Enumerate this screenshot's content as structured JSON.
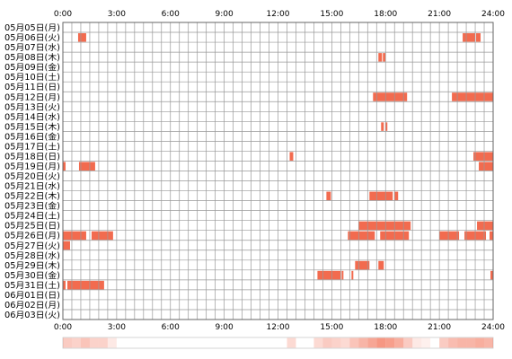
{
  "chart_data": {
    "type": "activity-grid",
    "title": "",
    "xlabel": "",
    "ylabel": "",
    "x_unit": "hour",
    "xlim": [
      0,
      24
    ],
    "x_ticks": [
      "0:00",
      "3:00",
      "6:00",
      "9:00",
      "12:00",
      "15:00",
      "18:00",
      "21:00",
      "24:00"
    ],
    "grid": true,
    "colors": {
      "bar": "#f26b4f",
      "bar_light": "#f7b2a3",
      "grid": "#999999",
      "border": "#666666"
    },
    "days": [
      {
        "label": "05月05日(月)",
        "spans": []
      },
      {
        "label": "05月06日(火)",
        "spans": [
          [
            0.85,
            1.3
          ],
          [
            22.3,
            23.0
          ],
          [
            23.05,
            23.3
          ]
        ]
      },
      {
        "label": "05月07日(水)",
        "spans": []
      },
      {
        "label": "05月08日(木)",
        "spans": [
          [
            17.6,
            17.8
          ],
          [
            17.85,
            18.0
          ]
        ]
      },
      {
        "label": "05月09日(金)",
        "spans": []
      },
      {
        "label": "05月10日(土)",
        "spans": []
      },
      {
        "label": "05月11日(日)",
        "spans": []
      },
      {
        "label": "05月12日(月)",
        "spans": [
          [
            17.3,
            19.2
          ],
          [
            21.7,
            24.0
          ]
        ]
      },
      {
        "label": "05月13日(火)",
        "spans": []
      },
      {
        "label": "05月14日(水)",
        "spans": []
      },
      {
        "label": "05月15日(木)",
        "spans": [
          [
            17.75,
            17.9
          ],
          [
            18.0,
            18.1
          ]
        ]
      },
      {
        "label": "05月16日(金)",
        "spans": []
      },
      {
        "label": "05月17日(土)",
        "spans": []
      },
      {
        "label": "05月18日(日)",
        "spans": [
          [
            12.65,
            12.85
          ],
          [
            22.9,
            24.0
          ]
        ]
      },
      {
        "label": "05月19日(月)",
        "spans": [
          [
            0.0,
            0.15
          ],
          [
            0.9,
            1.8
          ],
          [
            23.2,
            24.0
          ]
        ]
      },
      {
        "label": "05月20日(火)",
        "spans": []
      },
      {
        "label": "05月21日(水)",
        "spans": []
      },
      {
        "label": "05月22日(木)",
        "spans": [
          [
            14.7,
            14.95
          ],
          [
            17.1,
            18.4
          ],
          [
            18.5,
            18.7
          ]
        ]
      },
      {
        "label": "05月23日(金)",
        "spans": []
      },
      {
        "label": "05月24日(土)",
        "spans": []
      },
      {
        "label": "05月25日(日)",
        "spans": [
          [
            16.5,
            19.4
          ],
          [
            23.1,
            24.0
          ]
        ]
      },
      {
        "label": "05月26日(月)",
        "spans": [
          [
            0.0,
            1.3
          ],
          [
            1.6,
            2.8
          ],
          [
            15.9,
            17.4
          ],
          [
            17.7,
            19.3
          ],
          [
            21.0,
            22.1
          ],
          [
            22.4,
            23.6
          ],
          [
            23.8,
            24.0
          ]
        ]
      },
      {
        "label": "05月27日(火)",
        "spans": [
          [
            0.0,
            0.4
          ]
        ]
      },
      {
        "label": "05月28日(水)",
        "spans": []
      },
      {
        "label": "05月29日(木)",
        "spans": [
          [
            16.3,
            17.1
          ],
          [
            17.6,
            17.9
          ]
        ]
      },
      {
        "label": "05月30日(金)",
        "spans": [
          [
            14.2,
            15.5
          ],
          [
            15.55,
            15.65
          ],
          [
            16.1,
            16.2
          ],
          [
            23.85,
            24.0
          ]
        ]
      },
      {
        "label": "05月31日(土)",
        "spans": [
          [
            0.0,
            0.15
          ],
          [
            0.25,
            2.3
          ]
        ]
      },
      {
        "label": "06月01日(日)",
        "spans": []
      },
      {
        "label": "06月02日(月)",
        "spans": []
      },
      {
        "label": "06月03日(火)",
        "spans": []
      }
    ],
    "summary_strip": [
      {
        "x": 0.0,
        "intensity": 0.35
      },
      {
        "x": 0.5,
        "intensity": 0.3
      },
      {
        "x": 1.0,
        "intensity": 0.4
      },
      {
        "x": 1.5,
        "intensity": 0.3
      },
      {
        "x": 2.0,
        "intensity": 0.3
      },
      {
        "x": 2.5,
        "intensity": 0.15
      },
      {
        "x": 12.5,
        "intensity": 0.25
      },
      {
        "x": 14.0,
        "intensity": 0.25
      },
      {
        "x": 14.5,
        "intensity": 0.35
      },
      {
        "x": 15.0,
        "intensity": 0.3
      },
      {
        "x": 15.5,
        "intensity": 0.25
      },
      {
        "x": 16.0,
        "intensity": 0.4
      },
      {
        "x": 16.5,
        "intensity": 0.5
      },
      {
        "x": 17.0,
        "intensity": 0.6
      },
      {
        "x": 17.5,
        "intensity": 0.7
      },
      {
        "x": 18.0,
        "intensity": 0.65
      },
      {
        "x": 18.5,
        "intensity": 0.55
      },
      {
        "x": 19.0,
        "intensity": 0.35
      },
      {
        "x": 19.5,
        "intensity": 0.15
      },
      {
        "x": 20.0,
        "intensity": 0.1
      },
      {
        "x": 21.0,
        "intensity": 0.35
      },
      {
        "x": 21.5,
        "intensity": 0.45
      },
      {
        "x": 22.0,
        "intensity": 0.5
      },
      {
        "x": 22.5,
        "intensity": 0.5
      },
      {
        "x": 23.0,
        "intensity": 0.55
      },
      {
        "x": 23.5,
        "intensity": 0.5
      }
    ]
  }
}
